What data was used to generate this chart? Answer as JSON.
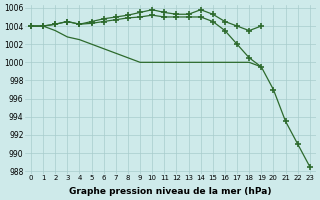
{
  "x": [
    0,
    1,
    2,
    3,
    4,
    5,
    6,
    7,
    8,
    9,
    10,
    11,
    12,
    13,
    14,
    15,
    16,
    17,
    18,
    19,
    20,
    21,
    22,
    23
  ],
  "line1": [
    1004,
    1004,
    1004.2,
    1004.5,
    1004.2,
    1004.5,
    1004.8,
    1005.0,
    1005.2,
    1005.5,
    1005.8,
    1005.5,
    1005.3,
    1005.3,
    1005.8,
    1005.3,
    1004.5,
    1004.0,
    1003.5,
    1004.0,
    null,
    null,
    null,
    null
  ],
  "line2": [
    1004,
    1004,
    1004.2,
    1004.5,
    1004.2,
    1004.3,
    1004.5,
    1004.7,
    1004.9,
    1005.0,
    1005.2,
    1005.0,
    1005.0,
    1005.0,
    1005.0,
    1004.5,
    1003.5,
    1002.0,
    1000.5,
    999.5,
    997.0,
    993.5,
    991.0,
    988.5
  ],
  "line3": [
    1004,
    1004,
    1003.5,
    1002.8,
    1002.5,
    1002.0,
    1001.5,
    1001.0,
    1000.5,
    1000.0,
    1000.0,
    1000.0,
    1000.0,
    1000.0,
    1000.0,
    1000.0,
    1000.0,
    1000.0,
    1000.0,
    999.5,
    null,
    null,
    null,
    null
  ],
  "ylim": [
    988,
    1006
  ],
  "yticks": [
    988,
    990,
    992,
    994,
    996,
    998,
    1000,
    1002,
    1004,
    1006
  ],
  "xlim": [
    0,
    23
  ],
  "xticks": [
    0,
    1,
    2,
    3,
    4,
    5,
    6,
    7,
    8,
    9,
    10,
    11,
    12,
    13,
    14,
    15,
    16,
    17,
    18,
    19,
    20,
    21,
    22,
    23
  ],
  "xlabel": "Graphe pression niveau de la mer (hPa)",
  "line_color": "#2d6a2d",
  "bg_color": "#ceeaea",
  "grid_color": "#a8cccc",
  "marker": "+",
  "markersize": 4,
  "markeredgewidth": 1.2,
  "linewidth": 0.9
}
